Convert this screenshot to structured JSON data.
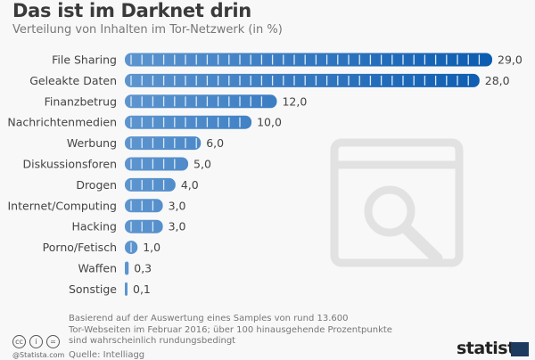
{
  "header": {
    "title": "Das ist im Darknet drin",
    "subtitle": "Verteilung von Inhalten im Tor-Netzwerk (in %)"
  },
  "chart_data": {
    "type": "bar",
    "orientation": "horizontal",
    "title": "Das ist im Darknet drin",
    "subtitle": "Verteilung von Inhalten im Tor-Netzwerk (in %)",
    "categories": [
      "File Sharing",
      "Geleakte Daten",
      "Finanzbetrug",
      "Nachrichtenmedien",
      "Werbung",
      "Diskussionsforen",
      "Drogen",
      "Internet/Computing",
      "Hacking",
      "Porno/Fetisch",
      "Waffen",
      "Sonstige"
    ],
    "values": [
      29.0,
      28.0,
      12.0,
      10.0,
      6.0,
      5.0,
      4.0,
      3.0,
      3.0,
      1.0,
      0.3,
      0.1
    ],
    "value_labels": [
      "29,0",
      "28,0",
      "12,0",
      "10,0",
      "6,0",
      "5,0",
      "4,0",
      "3,0",
      "3,0",
      "1,0",
      "0,3",
      "0,1"
    ],
    "xlim": [
      0,
      29
    ],
    "grid": false,
    "colors": {
      "bar_light": "#5d95cf",
      "bar_dark": "#0b5bb0",
      "separator": "#dbe8f5"
    }
  },
  "footer": {
    "note_lines": [
      "Basierend auf der Auswertung eines Samples von rund 13.600",
      "Tor-Webseiten im Februar 2016; über 100 hinausgehende Prozentpunkte",
      "sind wahrscheinlich rundungsbedingt"
    ],
    "source": "Quelle: Intelliagg",
    "credit": "@Statista.com",
    "cc_icons": [
      "cc-icon",
      "by-icon",
      "nd-icon"
    ],
    "logo": "statista"
  }
}
